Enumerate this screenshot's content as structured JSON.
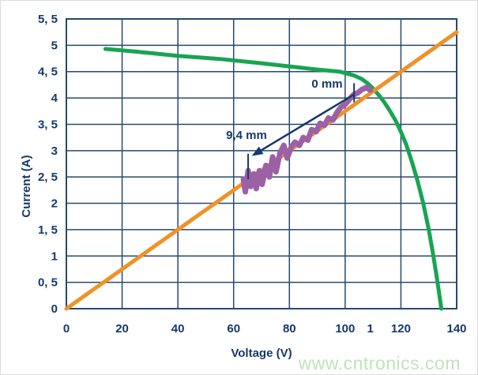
{
  "watermark": {
    "text": "www.cntronics.com",
    "color": "#bfe3ba"
  },
  "chart_data": {
    "type": "line",
    "title": "",
    "xlabel": "Voltage (V)",
    "ylabel": "Current (A)",
    "xlim": [
      0,
      140
    ],
    "ylim": [
      0,
      5.5
    ],
    "x_grid_step": 20,
    "y_grid_step": 0.5,
    "grid_on": true,
    "legend": "none",
    "grid_color": "#27496f",
    "text_color": "#16386b",
    "x_ticks": [
      {
        "v": 0,
        "label": "0"
      },
      {
        "v": 20,
        "label": "20"
      },
      {
        "v": 40,
        "label": "40"
      },
      {
        "v": 60,
        "label": "60"
      },
      {
        "v": 80,
        "label": "80"
      },
      {
        "v": 100,
        "label": "100"
      },
      {
        "v": 109,
        "label": "1"
      },
      {
        "v": 120,
        "label": "120"
      },
      {
        "v": 140,
        "label": "140"
      }
    ],
    "y_ticks": [
      {
        "v": 0,
        "label": "0"
      },
      {
        "v": 0.5,
        "label": "0, 5"
      },
      {
        "v": 1,
        "label": "1"
      },
      {
        "v": 1.5,
        "label": "1, 5"
      },
      {
        "v": 2,
        "label": "2"
      },
      {
        "v": 2.5,
        "label": "2, 5"
      },
      {
        "v": 3,
        "label": "3"
      },
      {
        "v": 3.5,
        "label": "3, 5"
      },
      {
        "v": 4,
        "label": "4"
      },
      {
        "v": 4.5,
        "label": "4, 5"
      },
      {
        "v": 5,
        "label": "5"
      },
      {
        "v": 5.5,
        "label": "5, 5"
      }
    ],
    "series": [
      {
        "name": "panel-iv-curve",
        "color": "#18a452",
        "width": 5,
        "points": [
          [
            14,
            4.93
          ],
          [
            25,
            4.88
          ],
          [
            40,
            4.8
          ],
          [
            55,
            4.74
          ],
          [
            70,
            4.66
          ],
          [
            80,
            4.6
          ],
          [
            90,
            4.54
          ],
          [
            98,
            4.5
          ],
          [
            103,
            4.43
          ],
          [
            106,
            4.36
          ],
          [
            108,
            4.28
          ],
          [
            110,
            4.18
          ],
          [
            112,
            4.06
          ],
          [
            114,
            3.92
          ],
          [
            116,
            3.76
          ],
          [
            118,
            3.58
          ],
          [
            120,
            3.36
          ],
          [
            122,
            3.1
          ],
          [
            124,
            2.78
          ],
          [
            126,
            2.42
          ],
          [
            128,
            2.0
          ],
          [
            130,
            1.5
          ],
          [
            131.5,
            1.05
          ],
          [
            133,
            0.55
          ],
          [
            134.5,
            0
          ]
        ]
      },
      {
        "name": "load-line",
        "color": "#ef9227",
        "width": 5,
        "points": [
          [
            0,
            0
          ],
          [
            140,
            5.25
          ]
        ]
      },
      {
        "name": "measured-trace",
        "color": "#9c60a5",
        "width": 7,
        "points": [
          [
            63.5,
            2.46
          ],
          [
            64.2,
            2.22
          ],
          [
            65.2,
            2.62
          ],
          [
            66.1,
            2.32
          ],
          [
            67.2,
            2.56
          ],
          [
            68.1,
            2.28
          ],
          [
            69.2,
            2.62
          ],
          [
            70.2,
            2.36
          ],
          [
            71.6,
            2.72
          ],
          [
            72.8,
            2.5
          ],
          [
            74.0,
            2.88
          ],
          [
            75.2,
            2.6
          ],
          [
            76.6,
            2.95
          ],
          [
            78.0,
            3.1
          ],
          [
            79.2,
            2.86
          ],
          [
            80.6,
            3.06
          ],
          [
            82.0,
            3.16
          ],
          [
            83.6,
            3.1
          ],
          [
            85.0,
            3.25
          ],
          [
            86.6,
            3.2
          ],
          [
            88.0,
            3.4
          ],
          [
            89.6,
            3.36
          ],
          [
            91.0,
            3.52
          ],
          [
            92.6,
            3.48
          ],
          [
            94.0,
            3.62
          ],
          [
            95.6,
            3.58
          ],
          [
            97.0,
            3.72
          ],
          [
            98.4,
            3.82
          ],
          [
            100.0,
            3.88
          ],
          [
            101.6,
            3.98
          ],
          [
            103.0,
            4.06
          ],
          [
            104.6,
            4.1
          ],
          [
            106.0,
            4.16
          ],
          [
            107.6,
            4.2
          ],
          [
            109.0,
            4.15
          ]
        ]
      }
    ],
    "annotations": {
      "arrow": {
        "from": [
          103.0,
          4.06
        ],
        "to": [
          66.5,
          2.9
        ],
        "color": "#16386b"
      },
      "marker_ticks": [
        {
          "v": 103.2,
          "a1": 4.28,
          "a2": 3.92
        },
        {
          "v": 65.2,
          "a1": 2.94,
          "a2": 2.46
        }
      ],
      "labels": [
        {
          "text": "0 mm"
        },
        {
          "text": "9,4 mm"
        }
      ]
    }
  }
}
